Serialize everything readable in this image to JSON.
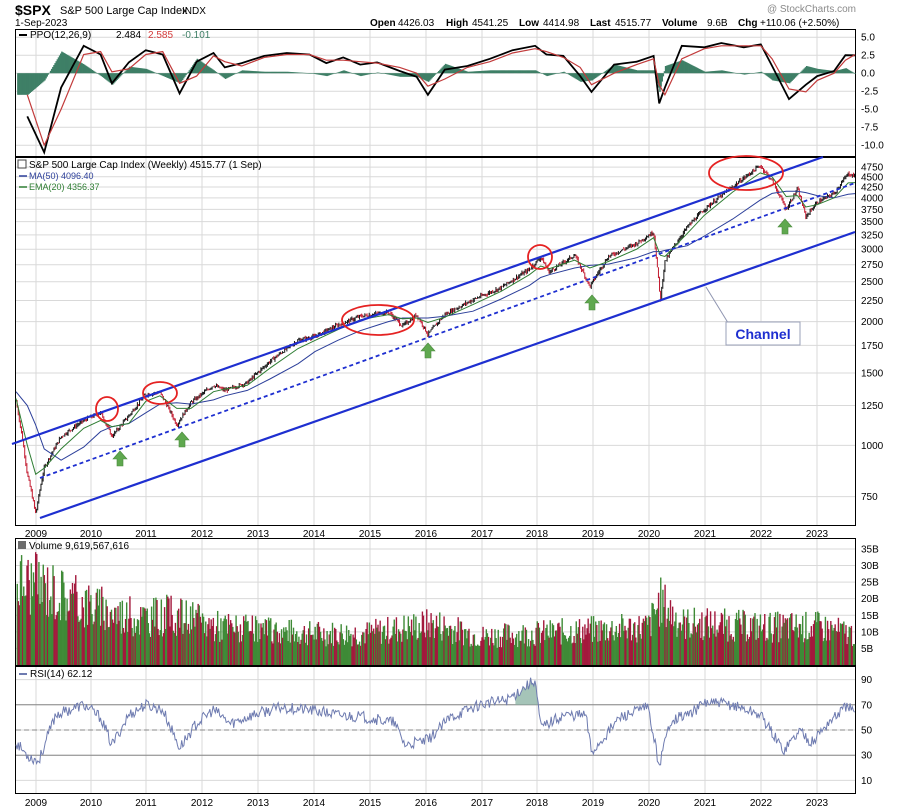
{
  "header": {
    "symbol": "$SPX",
    "name": "S&P 500 Large Cap Index",
    "exchange": "INDX",
    "date": "1-Sep-2023",
    "open_label": "Open",
    "open": "4426.03",
    "high_label": "High",
    "high": "4541.25",
    "low_label": "Low",
    "low": "4414.98",
    "last_label": "Last",
    "last": "4515.77",
    "volume_label": "Volume",
    "volume": "9.6B",
    "chg_label": "Chg",
    "chg": "+110.06 (+2.50%)",
    "watermark": "@ StockCharts.com"
  },
  "colors": {
    "blue": "#1e2fd0",
    "red": "#e52222",
    "green": "#5fa84f",
    "ma": "#2c3f9a",
    "ema": "#2e7d32",
    "vol_red": "#a3193d",
    "vol_green": "#3e8a36",
    "ppo_hist": "#3e7f66",
    "rsi": "#6e7bb0",
    "grid": "#d9d9d9"
  },
  "chart_data": [
    {
      "type": "line",
      "panel": "PPO",
      "legend": {
        "ppo": "PPO(12,26,9)",
        "ppo_value": "2.484",
        "signal": "2.585",
        "hist": "-0.101"
      },
      "yticks": [
        "5.0",
        "2.5",
        "0.0",
        "-2.5",
        "-5.0",
        "-7.5",
        "-10.0"
      ],
      "ylim": [
        -11.5,
        6
      ],
      "x": [
        2009.0,
        2009.3,
        2009.6,
        2010.0,
        2010.3,
        2010.5,
        2010.8,
        2011.1,
        2011.4,
        2011.7,
        2012.0,
        2012.3,
        2012.5,
        2012.8,
        2013.2,
        2013.6,
        2014.0,
        2014.3,
        2014.6,
        2014.9,
        2015.2,
        2015.6,
        2015.9,
        2016.1,
        2016.4,
        2016.8,
        2017.2,
        2017.6,
        2018.0,
        2018.2,
        2018.5,
        2018.8,
        2019.0,
        2019.4,
        2019.8,
        2020.1,
        2020.2,
        2020.3,
        2020.6,
        2021.0,
        2021.3,
        2021.7,
        2022.0,
        2022.2,
        2022.5,
        2022.8,
        2023.0,
        2023.3,
        2023.5,
        2023.67
      ],
      "series": [
        {
          "values": [
            -6,
            -11,
            -2,
            3.8,
            2.6,
            -1.4,
            1.5,
            3.2,
            2.6,
            -2.8,
            1.6,
            2.8,
            0.8,
            1.4,
            2.4,
            2.8,
            2.6,
            1.4,
            2.2,
            1.2,
            1.5,
            0.3,
            -0.5,
            -3.0,
            0.5,
            1.0,
            2.0,
            3.2,
            3.8,
            2.6,
            2.4,
            -0.4,
            -2.6,
            1.2,
            1.6,
            2.4,
            -4.2,
            -2.0,
            3.8,
            3.6,
            4.2,
            3.6,
            4.0,
            1.0,
            -3.6,
            -1.6,
            -0.4,
            0.3,
            2.5,
            2.48
          ]
        },
        {
          "values": [
            -3,
            -10,
            -5,
            2.6,
            3.0,
            0.2,
            0.6,
            2.6,
            3.0,
            -1.4,
            -0.4,
            2.4,
            1.6,
            1.0,
            2.2,
            2.6,
            2.6,
            1.8,
            1.8,
            1.6,
            1.4,
            0.8,
            0.0,
            -1.8,
            -0.8,
            0.8,
            1.6,
            2.8,
            3.4,
            3.0,
            2.2,
            0.8,
            -1.6,
            0.0,
            1.2,
            2.0,
            -1.6,
            -3.0,
            2.0,
            3.4,
            3.8,
            3.8,
            3.8,
            2.0,
            -2.2,
            -2.6,
            -1.0,
            0.0,
            1.8,
            2.585
          ]
        }
      ]
    },
    {
      "type": "line",
      "panel": "price",
      "scale": "log",
      "legend": {
        "title": "S&P 500 Large Cap Index (Weekly) 4515.77 (1 Sep)",
        "ma": "MA(50) 4096.40",
        "ema": "EMA(20) 4356.37"
      },
      "yticks": [
        "4750",
        "4500",
        "4250",
        "4000",
        "3750",
        "3500",
        "3250",
        "3000",
        "2750",
        "2500",
        "2250",
        "2000",
        "1750",
        "1500",
        "1250",
        "1000",
        "750"
      ],
      "ylim": [
        640,
        5000
      ],
      "x": [
        2008.8,
        2009.0,
        2009.15,
        2009.3,
        2009.6,
        2010.0,
        2010.3,
        2010.5,
        2010.8,
        2011.1,
        2011.35,
        2011.65,
        2011.9,
        2012.3,
        2012.5,
        2012.9,
        2013.3,
        2013.8,
        2014.1,
        2014.5,
        2014.9,
        2015.4,
        2015.65,
        2015.9,
        2016.1,
        2016.4,
        2016.9,
        2017.4,
        2017.9,
        2018.1,
        2018.25,
        2018.7,
        2018.97,
        2019.3,
        2019.8,
        2020.1,
        2020.22,
        2020.3,
        2020.7,
        2021.0,
        2021.5,
        2021.99,
        2022.2,
        2022.45,
        2022.65,
        2022.8,
        2023.0,
        2023.3,
        2023.55,
        2023.67
      ],
      "series": [
        {
          "name": "S&P 500 Large Cap Index (Weekly)",
          "values": [
            1280,
            850,
            680,
            880,
            1050,
            1150,
            1200,
            1050,
            1180,
            1330,
            1345,
            1120,
            1270,
            1400,
            1360,
            1420,
            1600,
            1800,
            1840,
            1960,
            2060,
            2110,
            1950,
            2080,
            1860,
            2080,
            2260,
            2420,
            2680,
            2870,
            2640,
            2900,
            2430,
            2880,
            3100,
            3300,
            2240,
            2800,
            3400,
            3750,
            4250,
            4790,
            4400,
            3750,
            4200,
            3600,
            3900,
            4100,
            4580,
            4515.77
          ]
        },
        {
          "name": "MA(50)",
          "values": [
            1350,
            1250,
            1120,
            980,
            920,
            990,
            1080,
            1110,
            1130,
            1200,
            1260,
            1270,
            1260,
            1290,
            1320,
            1360,
            1450,
            1580,
            1690,
            1800,
            1900,
            2000,
            2040,
            2040,
            2040,
            2060,
            2120,
            2270,
            2450,
            2560,
            2600,
            2700,
            2740,
            2760,
            2860,
            2960,
            2960,
            2980,
            3060,
            3230,
            3550,
            3950,
            4100,
            4150,
            4150,
            4120,
            4050,
            4000,
            4080,
            4096.4
          ]
        },
        {
          "name": "EMA(20)",
          "values": [
            1300,
            1000,
            850,
            880,
            980,
            1100,
            1150,
            1110,
            1130,
            1280,
            1320,
            1230,
            1230,
            1350,
            1370,
            1400,
            1540,
            1720,
            1800,
            1910,
            2020,
            2080,
            2030,
            2040,
            1990,
            2050,
            2200,
            2370,
            2600,
            2730,
            2690,
            2820,
            2700,
            2800,
            3000,
            3200,
            2900,
            2880,
            3280,
            3630,
            4130,
            4600,
            4500,
            4030,
            4050,
            3800,
            3850,
            4000,
            4350,
            4356.37
          ]
        }
      ],
      "annotations": {
        "callout": "Channel"
      }
    },
    {
      "type": "bar",
      "panel": "volume",
      "legend": "Volume 9,619,567,616",
      "yticks": [
        "35B",
        "30B",
        "25B",
        "20B",
        "15B",
        "10B",
        "5B"
      ],
      "ylim": [
        0,
        38
      ],
      "x_range": [
        2008.8,
        2023.67
      ],
      "profile": {
        "x": [
          2008.8,
          2009.3,
          2009.8,
          2010.4,
          2011.0,
          2011.6,
          2012.2,
          2013.0,
          2014.0,
          2015.0,
          2015.8,
          2016.2,
          2017.0,
          2018.0,
          2019.0,
          2020.0,
          2020.2,
          2020.6,
          2021.0,
          2022.0,
          2022.6,
          2023.0,
          2023.67
        ],
        "values": [
          27,
          25,
          21,
          17,
          15,
          16,
          13,
          11,
          10,
          10,
          12,
          13,
          9,
          10,
          11,
          12,
          20,
          13,
          13,
          12,
          12,
          12,
          9.6
        ]
      }
    },
    {
      "type": "line",
      "panel": "RSI",
      "legend": "RSI(14) 62.12",
      "yticks": [
        "90",
        "70",
        "50",
        "30",
        "10"
      ],
      "ylim": [
        0,
        100
      ],
      "x": [
        2008.8,
        2009.0,
        2009.2,
        2009.5,
        2010.0,
        2010.3,
        2010.5,
        2010.8,
        2011.1,
        2011.4,
        2011.7,
        2012.0,
        2012.3,
        2012.6,
        2013.0,
        2013.5,
        2014.0,
        2014.5,
        2015.0,
        2015.5,
        2015.7,
        2016.1,
        2016.5,
        2017.0,
        2017.5,
        2018.0,
        2018.1,
        2018.5,
        2018.9,
        2019.0,
        2019.5,
        2020.0,
        2020.2,
        2020.4,
        2020.8,
        2021.0,
        2021.5,
        2022.0,
        2022.4,
        2022.7,
        2022.9,
        2023.2,
        2023.55,
        2023.67
      ],
      "values": [
        40,
        30,
        25,
        62,
        70,
        60,
        38,
        62,
        70,
        66,
        36,
        55,
        66,
        55,
        62,
        68,
        66,
        62,
        60,
        56,
        38,
        42,
        60,
        70,
        74,
        90,
        52,
        62,
        62,
        32,
        60,
        68,
        22,
        58,
        64,
        72,
        70,
        62,
        34,
        50,
        40,
        56,
        70,
        62.12
      ]
    }
  ],
  "xaxis": {
    "years": [
      "2009",
      "2010",
      "2011",
      "2012",
      "2013",
      "2014",
      "2015",
      "2016",
      "2017",
      "2018",
      "2019",
      "2020",
      "2021",
      "2022",
      "2023"
    ]
  }
}
